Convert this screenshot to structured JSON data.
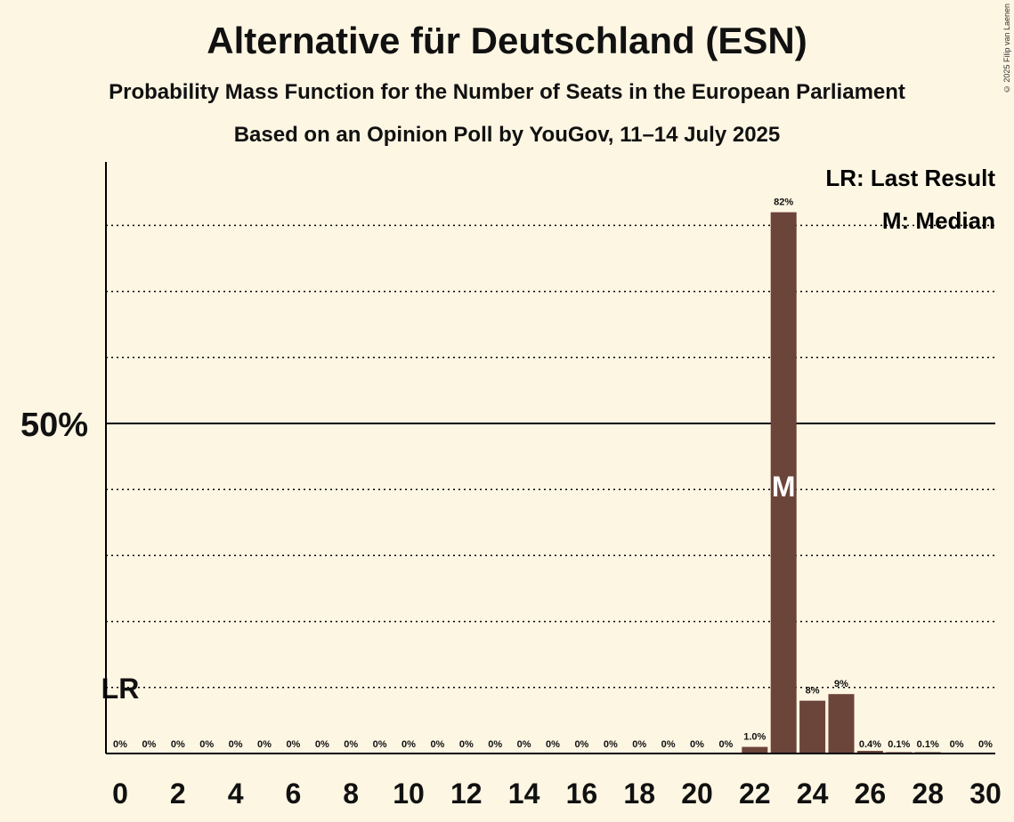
{
  "title": "Alternative für Deutschland (ESN)",
  "subtitle1": "Probability Mass Function for the Number of Seats in the European Parliament",
  "subtitle2": "Based on an Opinion Poll by YouGov, 11–14 July 2025",
  "copyright": "© 2025 Filip van Laenen",
  "legend": {
    "lr": "LR: Last Result",
    "median": "M: Median"
  },
  "colors": {
    "bar": "#6b443a",
    "background": "#fdf6e3",
    "axis": "#000000"
  },
  "chart_data": {
    "type": "bar",
    "categories": [
      0,
      1,
      2,
      3,
      4,
      5,
      6,
      7,
      8,
      9,
      10,
      11,
      12,
      13,
      14,
      15,
      16,
      17,
      18,
      19,
      20,
      21,
      22,
      23,
      24,
      25,
      26,
      27,
      28,
      29,
      30
    ],
    "values": [
      0,
      0,
      0,
      0,
      0,
      0,
      0,
      0,
      0,
      0,
      0,
      0,
      0,
      0,
      0,
      0,
      0,
      0,
      0,
      0,
      0,
      0,
      1.0,
      82,
      8,
      9,
      0.4,
      0.1,
      0.1,
      0,
      0
    ],
    "labels": [
      "0%",
      "0%",
      "0%",
      "0%",
      "0%",
      "0%",
      "0%",
      "0%",
      "0%",
      "0%",
      "0%",
      "0%",
      "0%",
      "0%",
      "0%",
      "0%",
      "0%",
      "0%",
      "0%",
      "0%",
      "0%",
      "0%",
      "1.0%",
      "82%",
      "8%",
      "9%",
      "0.4%",
      "0.1%",
      "0.1%",
      "0%",
      "0%"
    ],
    "xticks": [
      0,
      2,
      4,
      6,
      8,
      10,
      12,
      14,
      16,
      18,
      20,
      22,
      24,
      26,
      28,
      30
    ],
    "ylim": [
      0,
      90
    ],
    "ytick_label": "50%",
    "ytick_value": 50,
    "gridlines": [
      10,
      20,
      30,
      40,
      60,
      70,
      80
    ],
    "last_result_seat": 0,
    "last_result_label": "LR",
    "median_seat": 23,
    "median_label": "M"
  }
}
